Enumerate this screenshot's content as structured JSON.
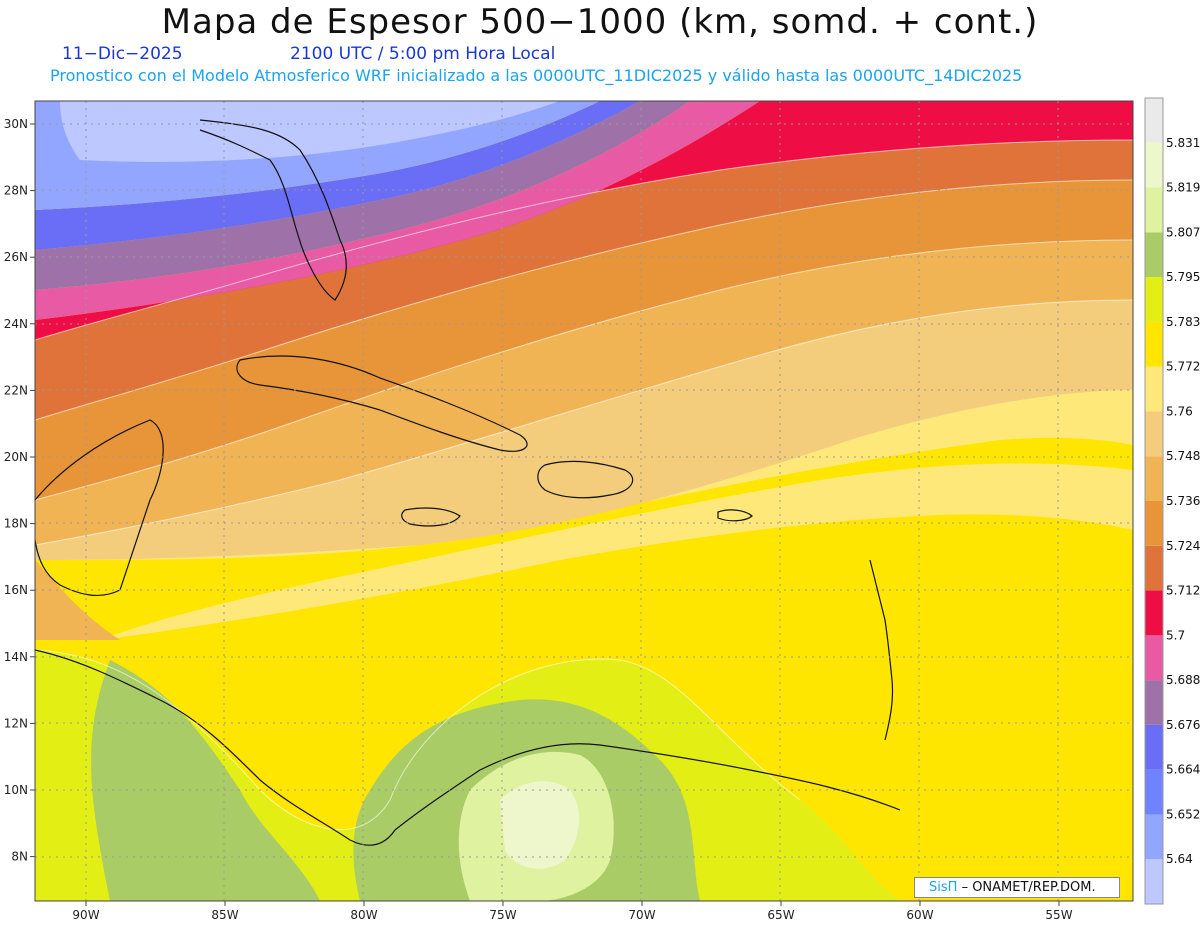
{
  "title": "Mapa de Espesor 500−1000 (km, somd. + cont.)",
  "subtitle": {
    "date": "11−Dic−2025",
    "time": "2100 UTC / 5:00 pm Hora Local",
    "model_line": "Pronostico con el Modelo Atmosferico WRF inicializado a las 0000UTC_11DIC2025 y válido hasta las  0000UTC_14DIC2025"
  },
  "colorbar": {
    "colors": [
      "#bcc8ff",
      "#93a6ff",
      "#6f82ff",
      "#6a6df5",
      "#9e71a8",
      "#e85aa4",
      "#ee0e45",
      "#e0733a",
      "#e8953a",
      "#f1b454",
      "#f3cc7c",
      "#ffe87a",
      "#ffe600",
      "#e2ee14",
      "#aacc66",
      "#dff2a0",
      "#eef6cc",
      "#eaeaea"
    ],
    "labels": [
      "5.64",
      "5.652",
      "5.664",
      "5.676",
      "5.688",
      "5.7",
      "5.712",
      "5.724",
      "5.736",
      "5.748",
      "5.76",
      "5.772",
      "5.783",
      "5.795",
      "5.807",
      "5.819",
      "5.831"
    ]
  },
  "axes": {
    "lon_labels": [
      "90W",
      "85W",
      "80W",
      "75W",
      "70W",
      "65W",
      "60W",
      "55W"
    ],
    "lat_labels": [
      "30N",
      "28N",
      "26N",
      "24N",
      "22N",
      "20N",
      "18N",
      "16N",
      "14N",
      "12N",
      "10N",
      "8N"
    ]
  },
  "credit": {
    "brand": "SisΠ",
    "text": "– ONAMET/REP.DOM."
  }
}
